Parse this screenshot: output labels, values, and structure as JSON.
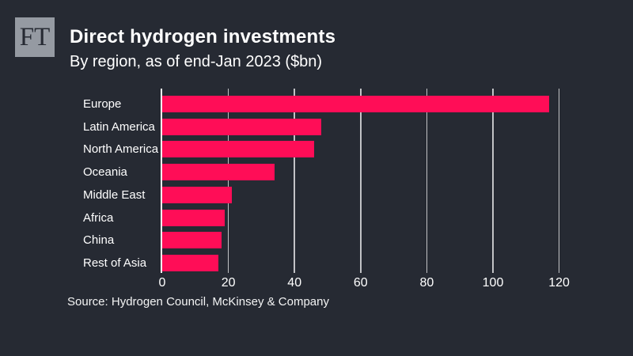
{
  "brand": {
    "logo_text": "FT"
  },
  "header": {
    "title": "Direct hydrogen investments",
    "subtitle": "By region, as of end-Jan 2023 ($bn)"
  },
  "chart_data": {
    "type": "bar",
    "orientation": "horizontal",
    "title": "Direct hydrogen investments",
    "subtitle": "By region, as of end-Jan 2023 ($bn)",
    "unit": "$bn",
    "categories": [
      "Europe",
      "Latin America",
      "North America",
      "Oceania",
      "Middle East",
      "Africa",
      "China",
      "Rest of Asia"
    ],
    "values": [
      117,
      48,
      46,
      34,
      21,
      19,
      18,
      17
    ],
    "xlabel": "",
    "ylabel": "",
    "xlim": [
      0,
      120
    ],
    "x_ticks": [
      0,
      20,
      40,
      60,
      80,
      100,
      120
    ],
    "grid": true,
    "legend": false
  },
  "footer": {
    "source": "Source: Hydrogen Council, McKinsey & Company"
  },
  "colors": {
    "background": "#262a33",
    "bar": "#ff0d57",
    "text": "#ffffff",
    "grid": "#ffffff",
    "logo_background": "#959aa2",
    "logo_text": "#262a33"
  }
}
